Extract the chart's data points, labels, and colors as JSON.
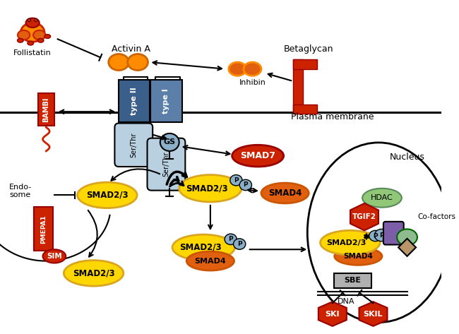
{
  "bg_color": "#ffffff",
  "plasma_membrane_label": "Plasma membrane",
  "endo_label": "Endo-\nsome",
  "nucleus_label": "Nucleus",
  "follistatin_label": "Follistatin",
  "activin_label": "Activin A",
  "betaglycan_label": "Betaglycan",
  "inhibin_label": "Inhibin",
  "smad7_label": "SMAD7",
  "smad23_label": "SMAD2/3",
  "smad4_label": "SMAD4",
  "bambi_label": "BAMBI",
  "pmepa1_label": "PMEPA1",
  "sim_label": "SIM",
  "gs_label": "GS",
  "serthr_label": "Ser/Thr",
  "sbe_label": "SBE",
  "dna_label": "DNA",
  "hdac_label": "HDAC",
  "tgif2_label": "TGIF2",
  "cofactors_label": "Co-factors",
  "ski_label": "SKI",
  "skil_label": "SKIL",
  "type1_label": "type I",
  "type2_label": "type II",
  "p_label": "P",
  "colors": {
    "red": "#CC2200",
    "dark_red": "#990000",
    "orange": "#FF8C00",
    "dark_orange": "#E06010",
    "yellow": "#FFD700",
    "yellow_ec": "#DAA520",
    "blue_dark": "#3A5F8A",
    "blue_mid": "#5B7FA8",
    "blue_light": "#8AAFC8",
    "blue_very_light": "#B8D0E0",
    "green": "#8FBC8F",
    "green_hdac": "#90C878",
    "purple": "#7B5EA7",
    "tan": "#B8966A",
    "light_gray": "#B0B0B0",
    "black": "#000000",
    "white": "#ffffff"
  }
}
